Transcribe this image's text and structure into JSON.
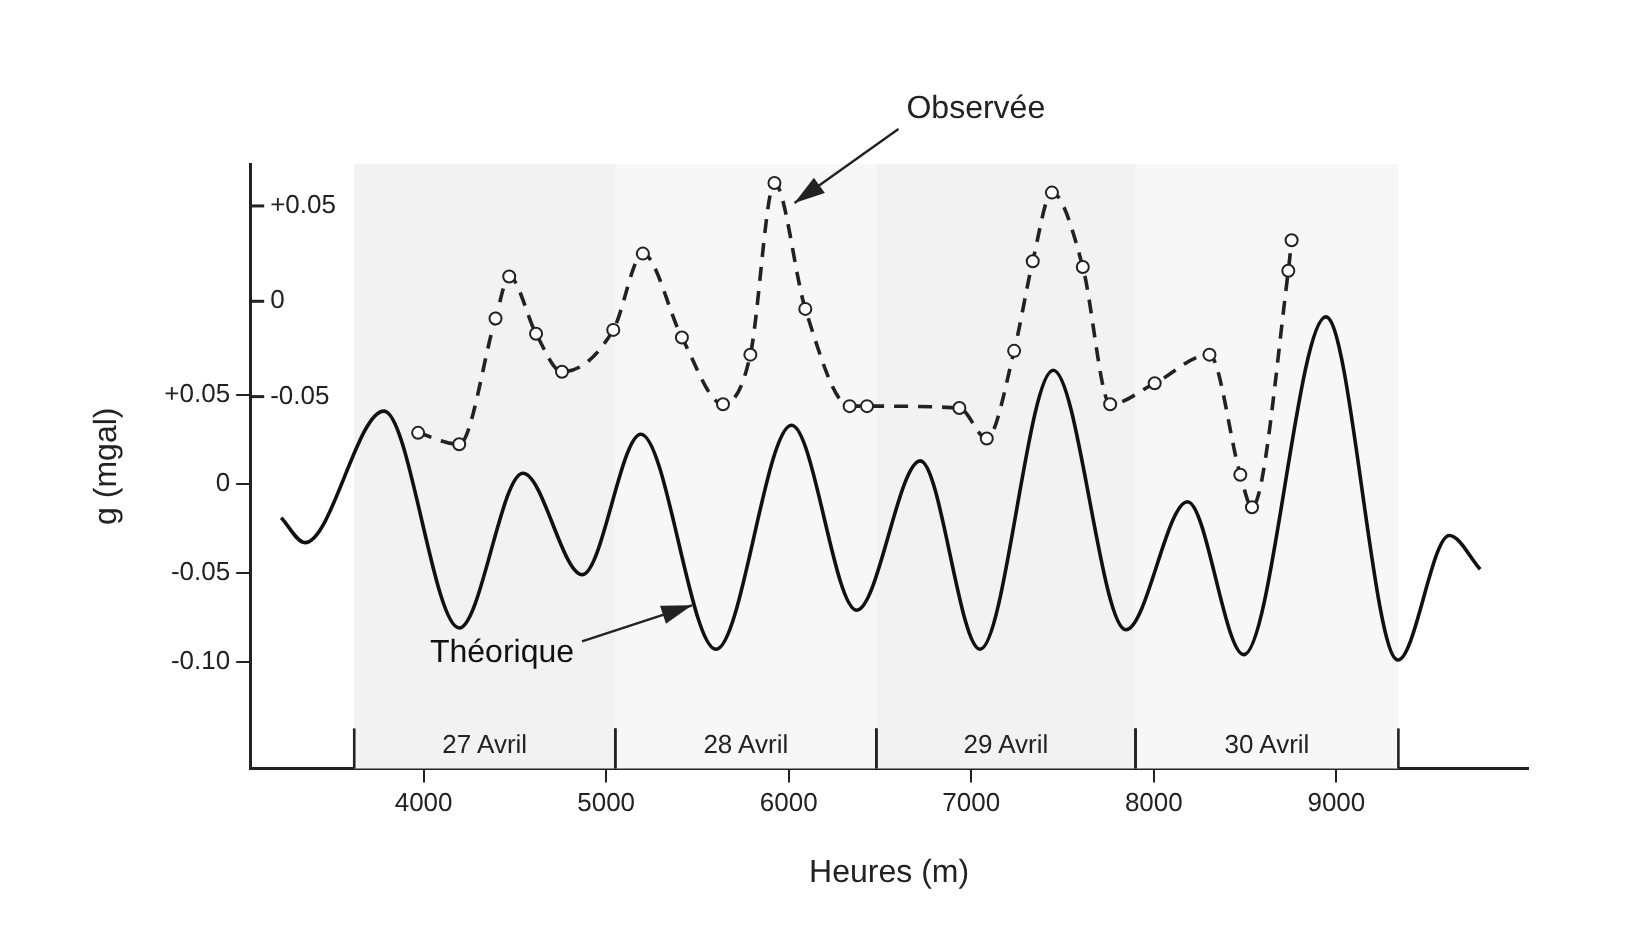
{
  "chart_data": {
    "type": "line",
    "xlabel": "Heures (m)",
    "ylabel": "g (mgal)",
    "xlim": [
      3050,
      10050
    ],
    "xticks": [
      4000,
      5000,
      6000,
      7000,
      8000,
      9000
    ],
    "ylim": [
      -0.16,
      0.18
    ],
    "yticks": [
      {
        "value": 0.05,
        "label": "+0.05"
      },
      0,
      -0.05,
      {
        "value": -0.1,
        "label": "-0.10"
      }
    ],
    "y2lim": [
      -0.245,
      0.072
    ],
    "y2ticks": [
      {
        "value": 0.05,
        "label": "+0.05"
      },
      0,
      -0.05
    ],
    "grid": false,
    "legend": false,
    "bands": [
      {
        "axis": "x",
        "from": 3620,
        "to": 5050,
        "label": "27 Avril",
        "color": "#f2f2f2"
      },
      {
        "axis": "x",
        "from": 5050,
        "to": 6480,
        "label": "28 Avril",
        "color": "#f7f7f7"
      },
      {
        "axis": "x",
        "from": 6480,
        "to": 7900,
        "label": "29 Avril",
        "color": "#f2f2f2"
      },
      {
        "axis": "x",
        "from": 7900,
        "to": 9340,
        "label": "30 Avril",
        "color": "#f7f7f7"
      }
    ],
    "series": [
      {
        "name": "Observée",
        "color": "#222222",
        "axis": "y2",
        "marker": "circle",
        "line_style": "dashed",
        "x": [
          3970,
          4195,
          4394,
          4469,
          4616,
          4758,
          5039,
          5201,
          5415,
          5640,
          5790,
          5922,
          6091,
          6334,
          6429,
          6935,
          7085,
          7235,
          7337,
          7442,
          7611,
          7761,
          8005,
          8305,
          8474,
          8538,
          8737,
          8755
        ],
        "values": [
          -0.069,
          -0.075,
          -0.009,
          0.013,
          -0.017,
          -0.037,
          -0.015,
          0.025,
          -0.019,
          -0.054,
          -0.028,
          0.062,
          -0.004,
          -0.055,
          -0.055,
          -0.056,
          -0.072,
          -0.026,
          0.021,
          0.057,
          0.018,
          -0.054,
          -0.043,
          -0.028,
          -0.091,
          -0.108,
          0.016,
          0.032
        ]
      },
      {
        "name": "Théorique",
        "color": "#111111",
        "marker": "none",
        "line_style": "solid",
        "x": [
          3220,
          3350,
          3783,
          4195,
          4544,
          4870,
          5190,
          5602,
          6016,
          6372,
          6721,
          7048,
          7449,
          7847,
          8185,
          8493,
          8943,
          9337,
          9619,
          9788
        ],
        "values": [
          -0.019,
          -0.033,
          0.041,
          -0.081,
          0.006,
          -0.051,
          0.028,
          -0.093,
          0.033,
          -0.071,
          0.013,
          -0.093,
          0.064,
          -0.082,
          -0.01,
          -0.096,
          0.094,
          -0.099,
          -0.029,
          -0.048
        ]
      }
    ]
  }
}
